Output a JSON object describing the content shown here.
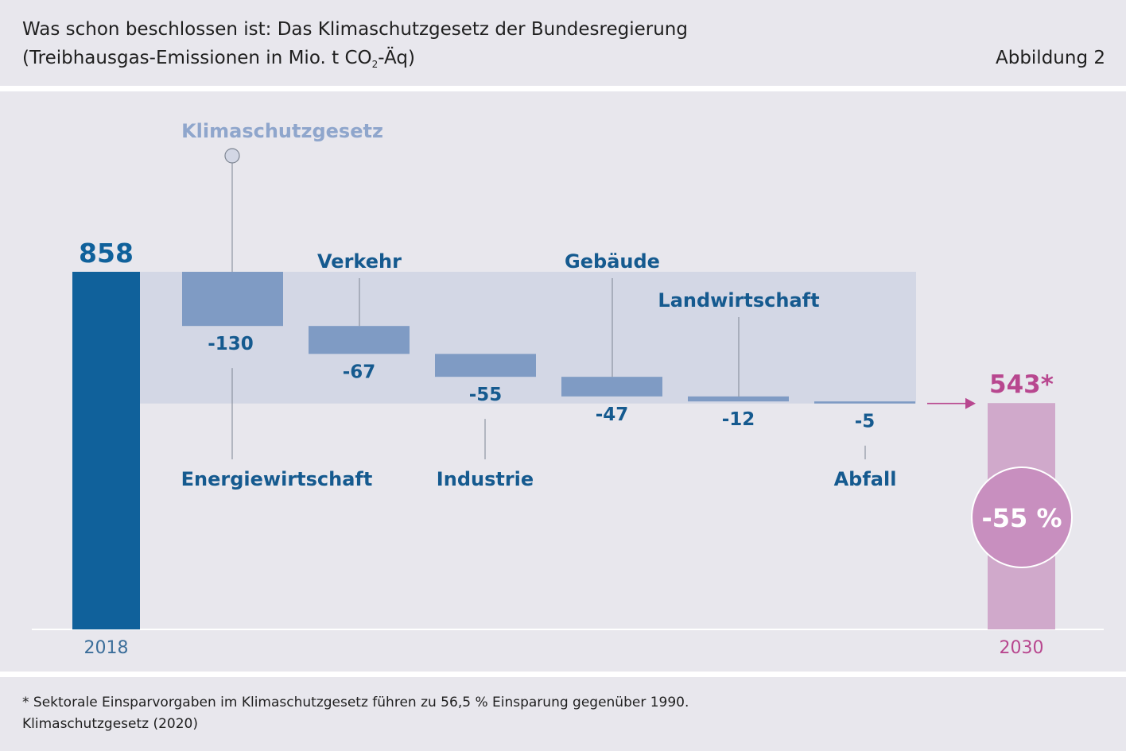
{
  "header": {
    "title": "Was schon beschlossen ist: Das Klimaschutzgesetz der Bundesregierung",
    "subtitle_pre": "(Treibhausgas-Emissionen in Mio. t CO",
    "subtitle_sub": "2",
    "subtitle_post": "-Äq)",
    "figure_label": "Abbildung 2"
  },
  "chart_data": {
    "type": "waterfall",
    "annotation": "Klimaschutzgesetz",
    "start": {
      "year": "2018",
      "value": 858,
      "label": "858"
    },
    "end": {
      "year": "2030",
      "value": 543,
      "label": "543*",
      "reduction_label": "-55 %"
    },
    "steps": [
      {
        "name": "Energiewirtschaft",
        "value": -130,
        "label": "-130"
      },
      {
        "name": "Verkehr",
        "value": -67,
        "label": "-67"
      },
      {
        "name": "Industrie",
        "value": -55,
        "label": "-55"
      },
      {
        "name": "Gebäude",
        "value": -47,
        "label": "-47"
      },
      {
        "name": "Landwirtschaft",
        "value": -12,
        "label": "-12"
      },
      {
        "name": "Abfall",
        "value": -5,
        "label": "-5"
      }
    ],
    "colors": {
      "start_bar": "#10619b",
      "step_bar": "#7f9bc4",
      "band": "#d3d7e5",
      "end_bar": "#d0a9cb",
      "end_accent": "#b8478f",
      "annotation": "#8fa6cc",
      "label_blue": "#155a8f",
      "connector": "#7d8592"
    }
  },
  "footer": {
    "footnote": "* Sektorale Einsparvorgaben im Klimaschutzgesetz führen zu 56,5 % Einsparung gegenüber 1990.",
    "source": "Klimaschutzgesetz (2020)"
  }
}
